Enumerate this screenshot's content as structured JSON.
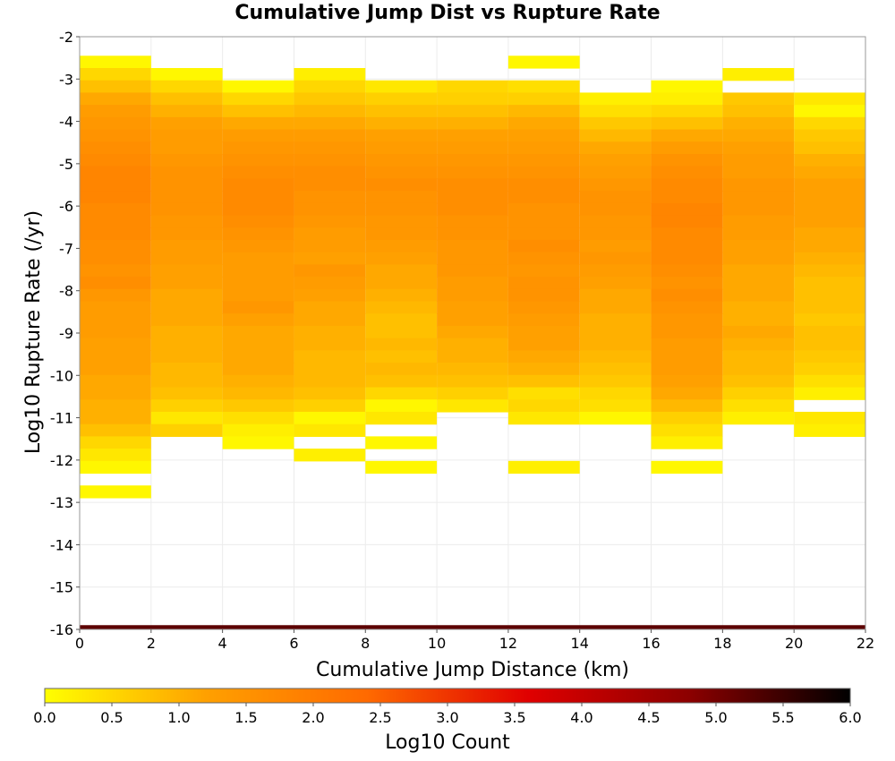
{
  "chart_data": {
    "type": "heatmap",
    "title": "Cumulative Jump Dist vs Rupture Rate",
    "xlabel": "Cumulative Jump Distance (km)",
    "ylabel": "Log10 Rupture Rate (/yr)",
    "xlim": [
      0,
      22
    ],
    "ylim": [
      -16,
      -2
    ],
    "xticks": [
      "0",
      "2",
      "4",
      "6",
      "8",
      "10",
      "12",
      "14",
      "16",
      "18",
      "20",
      "22"
    ],
    "yticks": [
      "-2",
      "-3",
      "-4",
      "-5",
      "-6",
      "-7",
      "-8",
      "-9",
      "-10",
      "-11",
      "-12",
      "-13",
      "-14",
      "-15",
      "-16"
    ],
    "x_bin_width": 2,
    "y_bin_height": 0.29,
    "grid": true,
    "colorbar": {
      "label": "Log10 Count",
      "range": [
        0,
        6
      ],
      "ticks": [
        "0.0",
        "0.5",
        "1.0",
        "1.5",
        "2.0",
        "2.5",
        "3.0",
        "3.5",
        "4.0",
        "4.5",
        "5.0",
        "5.5",
        "6.0"
      ],
      "colors": [
        "#ffff00",
        "#ffa000",
        "#ff6a00",
        "#e00000",
        "#8c0000",
        "#000000"
      ]
    },
    "columns": [
      {
        "x": 1,
        "y_top": -2.45,
        "values": [
          0.1,
          0.5,
          0.8,
          1.1,
          1.3,
          1.4,
          1.5,
          1.6,
          1.7,
          1.8,
          1.8,
          1.8,
          1.7,
          1.7,
          1.7,
          1.6,
          1.6,
          1.5,
          1.6,
          1.4,
          1.3,
          1.3,
          1.3,
          1.2,
          1.2,
          1.2,
          1.1,
          1.1,
          1.0,
          1.0,
          0.8,
          0.5,
          0.3,
          0.1,
          null,
          0.1
        ]
      },
      {
        "x": 3,
        "y_top": -2.74,
        "values": [
          0.1,
          0.5,
          0.8,
          1.0,
          1.2,
          1.3,
          1.3,
          1.4,
          1.5,
          1.5,
          1.5,
          1.5,
          1.4,
          1.4,
          1.3,
          1.3,
          1.2,
          1.2,
          1.1,
          1.1,
          1.1,
          1.0,
          1.0,
          1.0,
          0.9,
          0.9,
          0.8,
          0.6,
          0.3,
          0.6
        ]
      },
      {
        "x": 5,
        "y_top": -3.03,
        "values": [
          0.1,
          0.5,
          0.8,
          1.1,
          1.3,
          1.4,
          1.5,
          1.6,
          1.7,
          1.7,
          1.7,
          1.6,
          1.5,
          1.4,
          1.3,
          1.3,
          1.3,
          1.3,
          1.4,
          1.2,
          1.1,
          1.1,
          1.1,
          1.1,
          1.0,
          0.9,
          0.7,
          0.4,
          0.2,
          0.1
        ]
      },
      {
        "x": 7,
        "y_top": -2.74,
        "values": [
          0.2,
          0.5,
          0.7,
          0.9,
          1.1,
          1.3,
          1.4,
          1.5,
          1.6,
          1.6,
          1.5,
          1.5,
          1.4,
          1.3,
          1.3,
          1.2,
          1.4,
          1.3,
          1.2,
          1.1,
          1.1,
          1.0,
          1.0,
          0.9,
          0.9,
          0.9,
          0.8,
          0.6,
          0.1,
          0.3,
          null,
          0.2
        ]
      },
      {
        "x": 9,
        "y_top": -3.03,
        "values": [
          0.3,
          0.6,
          0.8,
          1.0,
          1.2,
          1.3,
          1.4,
          1.5,
          1.6,
          1.5,
          1.5,
          1.4,
          1.4,
          1.3,
          1.2,
          1.1,
          1.1,
          1.0,
          0.9,
          0.8,
          0.8,
          0.9,
          0.8,
          0.9,
          0.8,
          0.5,
          0.1,
          0.3,
          null,
          0.1,
          null,
          0.1
        ]
      },
      {
        "x": 11,
        "y_top": -3.03,
        "values": [
          0.5,
          0.6,
          0.8,
          1.0,
          1.2,
          1.3,
          1.4,
          1.5,
          1.6,
          1.6,
          1.6,
          1.5,
          1.5,
          1.4,
          1.4,
          1.4,
          1.3,
          1.3,
          1.2,
          1.2,
          1.1,
          1.0,
          1.0,
          0.9,
          0.8,
          0.6,
          0.3
        ]
      },
      {
        "x": 13,
        "y_top": -2.45,
        "values": [
          0.1,
          null,
          0.4,
          0.6,
          0.9,
          1.1,
          1.2,
          1.3,
          1.4,
          1.5,
          1.6,
          1.6,
          1.5,
          1.5,
          1.5,
          1.6,
          1.5,
          1.4,
          1.5,
          1.5,
          1.4,
          1.3,
          1.2,
          1.2,
          1.1,
          1.0,
          0.8,
          0.4,
          0.5,
          0.3,
          null,
          null,
          null,
          0.2
        ]
      },
      {
        "x": 15,
        "y_top": -3.32,
        "values": [
          0.2,
          0.4,
          0.7,
          0.9,
          1.1,
          1.2,
          1.3,
          1.4,
          1.5,
          1.5,
          1.4,
          1.4,
          1.3,
          1.4,
          1.3,
          1.2,
          1.1,
          1.1,
          1.0,
          1.0,
          1.0,
          0.9,
          0.8,
          0.7,
          0.5,
          0.4,
          0.1
        ]
      },
      {
        "x": 17,
        "y_top": -3.03,
        "values": [
          0.1,
          0.2,
          0.5,
          0.8,
          1.1,
          1.3,
          1.5,
          1.6,
          1.7,
          1.7,
          1.8,
          1.8,
          1.7,
          1.7,
          1.7,
          1.6,
          1.5,
          1.6,
          1.5,
          1.4,
          1.4,
          1.3,
          1.3,
          1.3,
          1.2,
          1.1,
          0.9,
          0.6,
          0.4,
          0.2,
          null,
          0.1
        ]
      },
      {
        "x": 19,
        "y_top": -2.74,
        "values": [
          0.2,
          null,
          0.7,
          0.8,
          1.0,
          1.1,
          1.2,
          1.3,
          1.3,
          1.4,
          1.4,
          1.4,
          1.3,
          1.3,
          1.2,
          1.2,
          1.1,
          1.1,
          1.1,
          1.0,
          1.0,
          1.1,
          1.0,
          0.9,
          0.9,
          0.8,
          0.6,
          0.4,
          0.2
        ]
      },
      {
        "x": 21,
        "y_top": -3.32,
        "values": [
          0.3,
          0.1,
          0.5,
          0.7,
          0.8,
          1.0,
          1.1,
          1.2,
          1.2,
          1.2,
          1.2,
          1.1,
          1.1,
          1.0,
          0.9,
          0.8,
          0.8,
          0.8,
          0.7,
          0.8,
          0.8,
          0.7,
          0.6,
          0.4,
          0.2,
          null,
          0.3,
          0.2
        ]
      }
    ],
    "bottom_row": {
      "y": -15.9,
      "value": 5.2
    }
  }
}
